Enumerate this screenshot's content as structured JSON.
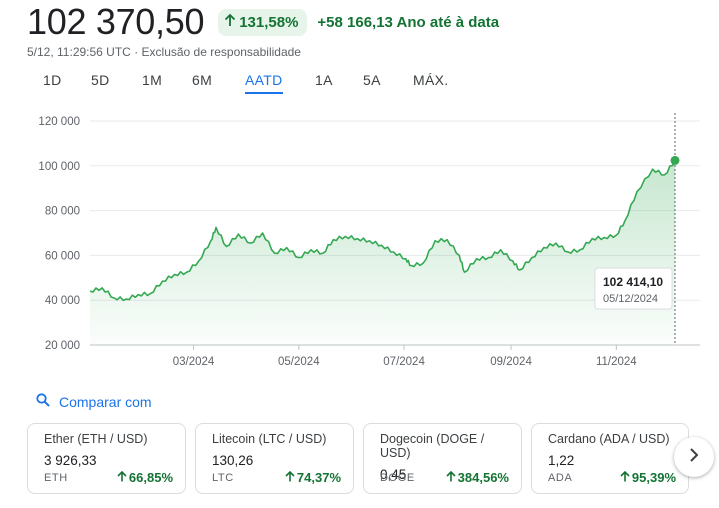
{
  "header": {
    "price": "102 370,50",
    "pct_change": "131,58%",
    "abs_change": "+58 166,13",
    "period": "Ano até à data",
    "timestamp": "5/12, 11:29:56 UTC",
    "separator": "·",
    "disclaimer": "Exclusão de responsabilidade"
  },
  "ranges": [
    "1D",
    "5D",
    "1M",
    "6M",
    "AATD",
    "1A",
    "5A",
    "MÁX."
  ],
  "active_range": "AATD",
  "colors": {
    "up": "#137333",
    "line": "#34a853",
    "accent": "#1a73e8",
    "grid": "#e8eaed"
  },
  "tooltip": {
    "value": "102 414,10",
    "date": "05/12/2024"
  },
  "chart_data": {
    "type": "area",
    "y_ticks": [
      "120 000",
      "100 000",
      "80 000",
      "60 000",
      "40 000",
      "20 000"
    ],
    "x_ticks": [
      "03/2024",
      "05/2024",
      "07/2024",
      "09/2024",
      "11/2024"
    ],
    "ylim": [
      20000,
      120000
    ],
    "x": [
      "2024-01-01",
      "2024-01-08",
      "2024-01-15",
      "2024-01-22",
      "2024-01-29",
      "2024-02-05",
      "2024-02-12",
      "2024-02-19",
      "2024-02-26",
      "2024-03-04",
      "2024-03-11",
      "2024-03-14",
      "2024-03-20",
      "2024-03-27",
      "2024-04-03",
      "2024-04-10",
      "2024-04-17",
      "2024-04-24",
      "2024-05-01",
      "2024-05-08",
      "2024-05-15",
      "2024-05-21",
      "2024-05-28",
      "2024-06-04",
      "2024-06-11",
      "2024-06-18",
      "2024-06-25",
      "2024-07-02",
      "2024-07-05",
      "2024-07-12",
      "2024-07-19",
      "2024-07-26",
      "2024-08-02",
      "2024-08-05",
      "2024-08-12",
      "2024-08-19",
      "2024-08-26",
      "2024-09-02",
      "2024-09-06",
      "2024-09-13",
      "2024-09-20",
      "2024-09-27",
      "2024-10-04",
      "2024-10-11",
      "2024-10-18",
      "2024-10-25",
      "2024-11-01",
      "2024-11-06",
      "2024-11-13",
      "2024-11-22",
      "2024-11-29",
      "2024-12-05"
    ],
    "y": [
      44000,
      45500,
      41000,
      40500,
      42500,
      43000,
      48500,
      51500,
      52500,
      57500,
      66500,
      72500,
      64000,
      69500,
      65500,
      70000,
      61000,
      63500,
      59000,
      62500,
      61000,
      67000,
      68500,
      67500,
      66500,
      64500,
      61500,
      58500,
      55500,
      56500,
      66500,
      67000,
      60000,
      52500,
      58500,
      59000,
      62500,
      57500,
      53500,
      59000,
      63500,
      65500,
      61500,
      62500,
      67500,
      68000,
      69000,
      75500,
      88500,
      98500,
      96000,
      102414
    ]
  },
  "compare_label": "Comparar com",
  "cards": [
    {
      "name": "Ether (ETH / USD)",
      "value": "3 926,33",
      "symbol": "ETH",
      "change": "66,85%"
    },
    {
      "name": "Litecoin (LTC / USD)",
      "value": "130,26",
      "symbol": "LTC",
      "change": "74,37%"
    },
    {
      "name": "Dogecoin (DOGE / USD)",
      "value": "0,45",
      "symbol": "DOGE",
      "change": "384,56%"
    },
    {
      "name": "Cardano (ADA / USD)",
      "value": "1,22",
      "symbol": "ADA",
      "change": "95,39%"
    }
  ],
  "icons": {
    "up_arrow": "arrow-up-icon",
    "search": "search-icon",
    "next": "chevron-right-icon"
  }
}
